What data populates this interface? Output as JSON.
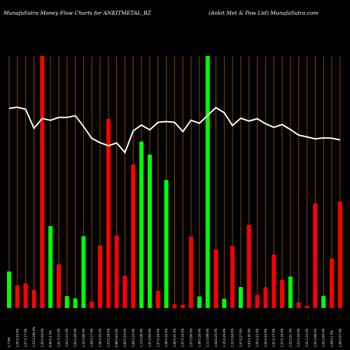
{
  "header": {
    "left_title": "MunafaSutra  Money Flow  Charts for ANKITMETAL_BZ",
    "right_title": "(Ankit Met & Pow  Ltd) MunafaSutra.com"
  },
  "chart_data": {
    "type": "bar",
    "title": "MunafaSutra  Money Flow  Charts for ANKITMETAL_BZ",
    "subtitle": "(Ankit Met & Pow  Ltd) MunafaSutra.com",
    "xlabel": "",
    "ylabel": "",
    "grid": "vertical lines per bar",
    "colors": {
      "up": "#00ff00",
      "down": "#ff0000",
      "line": "#ffffff",
      "grid": "#8b4513",
      "background": "#000000"
    },
    "categories": [
      "0.7 0%",
      "1.05 0.23 0%",
      "1.07 0.17 0%",
      "1.03 0.194 0%",
      "1.00 0.04 0%",
      "0.95 0.2 0%",
      "1.01 0.13 0%",
      "1.02 0.13 0%",
      "1.02 0.28 0%",
      "1.10 0.06 0%",
      "1.08 0.17 0%",
      "1.06 0.25 0%",
      "1.03 0.28 0%",
      "0.89 0.03 0%",
      "1.00 0.14 0%",
      "1.06 0.14 0%",
      "1.13 0.08 0%",
      "1.07 0.09 0%",
      "1.07 0.34 0%",
      "1.08 0.32 0%",
      "1.06 0.31 0%",
      "1.07 0.14 0%",
      "1.07 0.06 0%",
      "1.08 0.16 0%",
      "1.11 0.08 0%",
      "1.04 0.25 0%",
      "1.15 0.29 0%",
      "1.10 0.04 0%",
      "1.07 0.27 0%",
      "1.03 0.30 0%",
      "1.00 0.23 0%",
      "1.00 0.24 0%",
      "1.01 0.17 0%",
      "1.07 0.19 0%",
      "1.02 0.21 0%",
      "1.03 0.10 0%",
      "1.01 0.14 0%",
      "1.02 0.08 0%",
      "1.02 0.04 0%",
      "1.08 0.1 0%",
      "1.06 0.07 0%"
    ],
    "series": [
      {
        "type": "bar",
        "values": [
          14.5,
          9,
          9.8,
          7.2,
          100,
          32.5,
          17.3,
          4.7,
          3.8,
          28.5,
          2.5,
          24.8,
          75,
          28.8,
          12.8,
          57,
          66,
          60.8,
          6.8,
          50.8,
          1.5,
          1.3,
          28.3,
          4.6,
          100,
          23.3,
          3.6,
          24.6,
          8.3,
          33,
          5.2,
          8.2,
          21.2,
          11.2,
          12.5,
          2.2,
          0.8,
          41.5,
          4.8,
          19.6,
          42.2
        ],
        "direction": [
          "up",
          "down",
          "down",
          "down",
          "down",
          "up",
          "down",
          "up",
          "up",
          "up",
          "down",
          "down",
          "down",
          "down",
          "down",
          "down",
          "up",
          "up",
          "down",
          "up",
          "down",
          "down",
          "down",
          "up",
          "up",
          "down",
          "up",
          "down",
          "up",
          "down",
          "down",
          "down",
          "down",
          "down",
          "up",
          "down",
          "down",
          "down",
          "up",
          "down",
          "down"
        ]
      },
      {
        "type": "line",
        "values": [
          79.2,
          79.7,
          78.9,
          71.3,
          75.2,
          74.5,
          75.6,
          75.6,
          76.3,
          72,
          67.3,
          65.6,
          64.4,
          65.5,
          61.7,
          70.3,
          72.6,
          70.7,
          73.7,
          74,
          73.7,
          70,
          74.5,
          73.3,
          76.5,
          79.5,
          77.5,
          72.4,
          75.3,
          74.2,
          75.1,
          73.1,
          71.7,
          72.8,
          70.8,
          68.6,
          67.9,
          67.1,
          67.5,
          67.4,
          66.7
        ]
      }
    ],
    "ylim": [
      0,
      100
    ]
  }
}
